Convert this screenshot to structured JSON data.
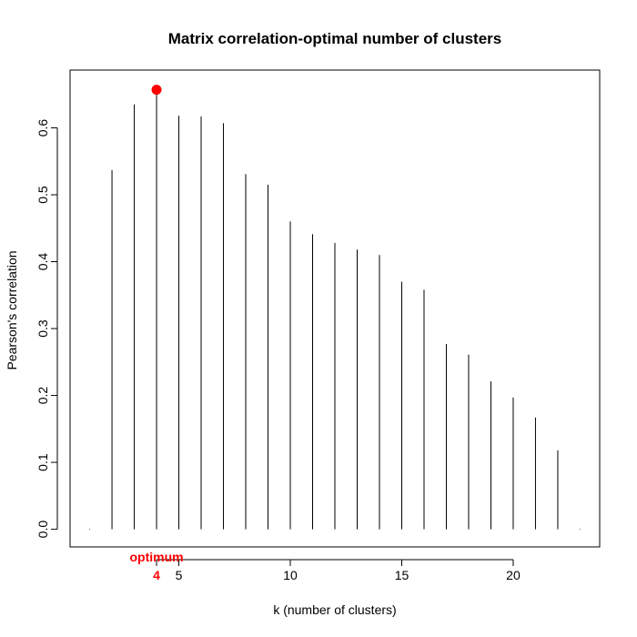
{
  "chart_data": {
    "type": "bar",
    "title": "Matrix correlation-optimal number of clusters",
    "xlabel": "k (number of clusters)",
    "ylabel": "Pearson's correlation",
    "xlim": [
      1,
      23
    ],
    "ylim": [
      0,
      0.66
    ],
    "x_ticks": [
      5,
      10,
      15,
      20
    ],
    "y_ticks": [
      "0.0",
      "0.1",
      "0.2",
      "0.3",
      "0.4",
      "0.5",
      "0.6"
    ],
    "x": [
      1,
      2,
      3,
      4,
      5,
      6,
      7,
      8,
      9,
      10,
      11,
      12,
      13,
      14,
      15,
      16,
      17,
      18,
      19,
      20,
      21,
      22,
      23
    ],
    "values": [
      0.0,
      0.537,
      0.635,
      0.657,
      0.618,
      0.617,
      0.607,
      0.531,
      0.515,
      0.46,
      0.441,
      0.428,
      0.418,
      0.41,
      0.37,
      0.358,
      0.277,
      0.261,
      0.221,
      0.197,
      0.167,
      0.118,
      0.0
    ],
    "optimum": {
      "k": 4,
      "value": 0.657,
      "label": "optimum",
      "k_label": "4",
      "color": "#ff0000"
    },
    "grid": false
  }
}
